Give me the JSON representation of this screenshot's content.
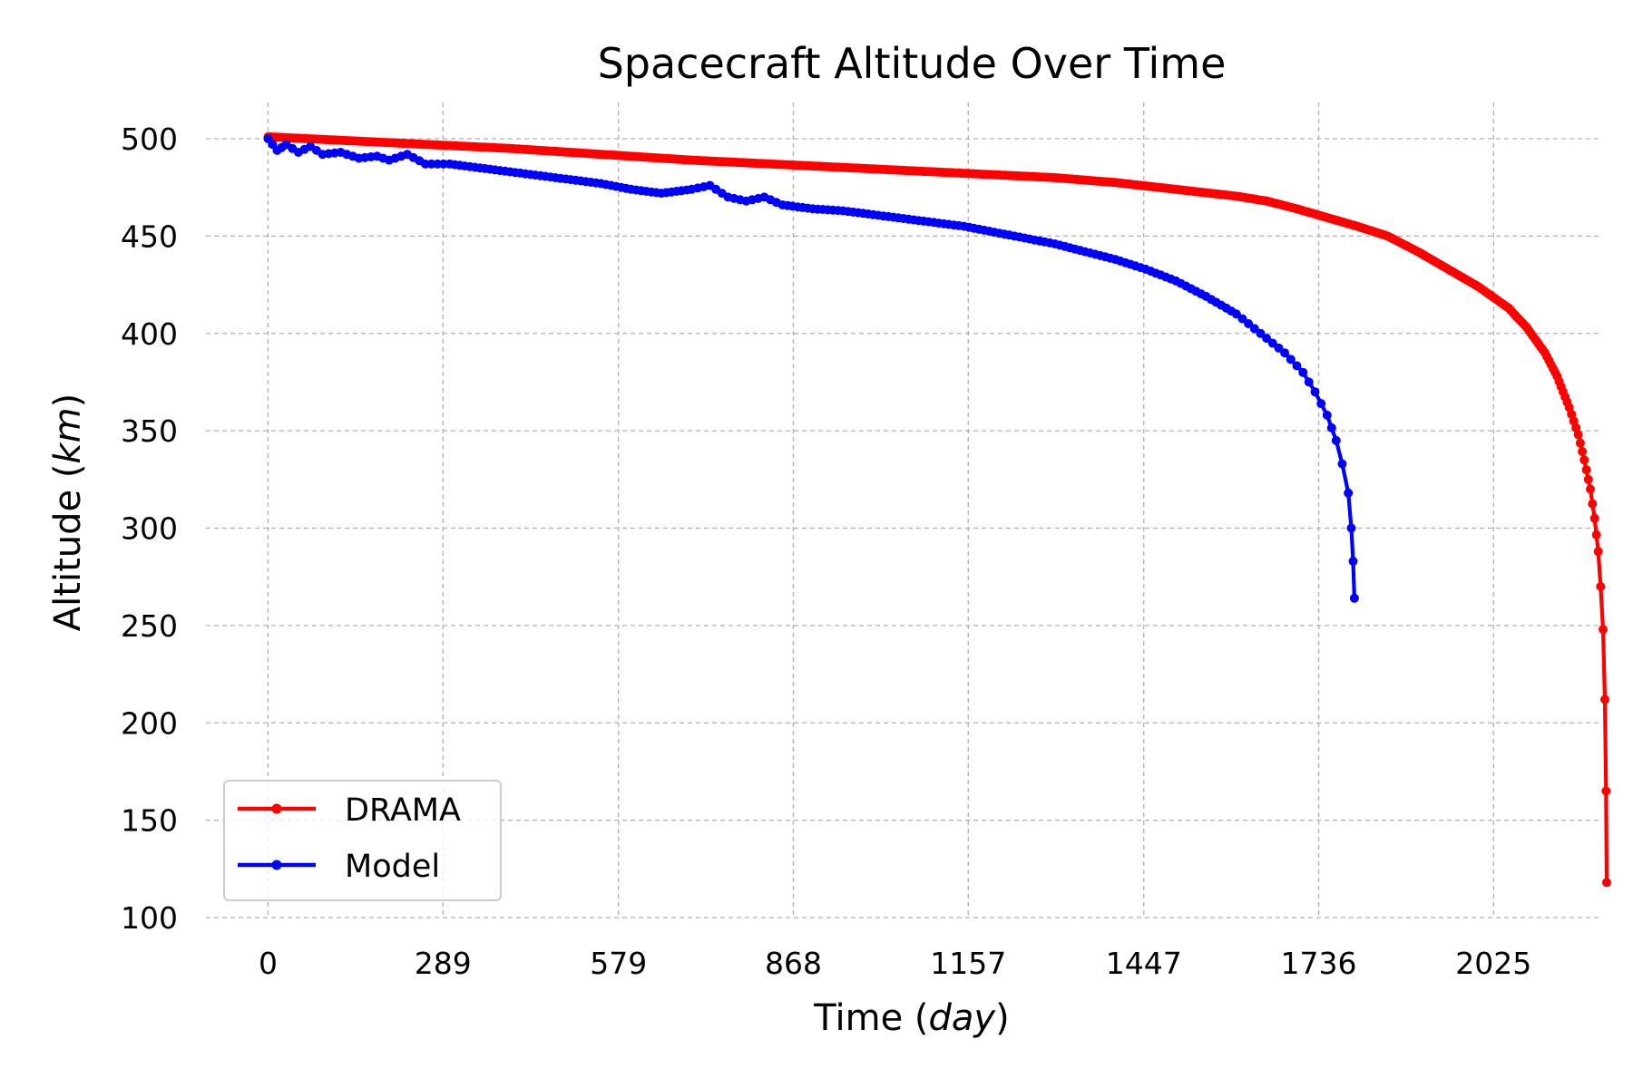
{
  "chart_data": {
    "type": "line",
    "title": "Spacecraft Altitude Over Time",
    "xlabel": "Time (day)",
    "xlabel_parts": {
      "prefix": "Time (",
      "unit": "day",
      "suffix": ")"
    },
    "ylabel": "Altitude (km)",
    "ylabel_parts": {
      "prefix": "Altitude (",
      "unit": "km",
      "suffix": ")"
    },
    "xlim": [
      -70,
      2450
    ],
    "ylim": [
      100,
      520
    ],
    "xticks": [
      0,
      289,
      579,
      868,
      1157,
      1447,
      1736,
      2025
    ],
    "yticks": [
      100,
      150,
      200,
      250,
      300,
      350,
      400,
      450,
      500
    ],
    "grid": true,
    "legend_position": "lower-left",
    "series": [
      {
        "name": "DRAMA",
        "color": "#ff0000",
        "points": [
          [
            0,
            501
          ],
          [
            100,
            499.5
          ],
          [
            200,
            498
          ],
          [
            300,
            496.5
          ],
          [
            400,
            495
          ],
          [
            500,
            493
          ],
          [
            600,
            491
          ],
          [
            700,
            489
          ],
          [
            800,
            487.5
          ],
          [
            900,
            486
          ],
          [
            1000,
            484.5
          ],
          [
            1100,
            483
          ],
          [
            1200,
            481.5
          ],
          [
            1300,
            480
          ],
          [
            1400,
            477.5
          ],
          [
            1500,
            474
          ],
          [
            1600,
            470.5
          ],
          [
            1650,
            468
          ],
          [
            1700,
            464
          ],
          [
            1750,
            459.5
          ],
          [
            1800,
            455
          ],
          [
            1850,
            450
          ],
          [
            1900,
            442
          ],
          [
            1950,
            433
          ],
          [
            2000,
            424
          ],
          [
            2050,
            413
          ],
          [
            2080,
            403
          ],
          [
            2110,
            390
          ],
          [
            2130,
            378
          ],
          [
            2150,
            362
          ],
          [
            2165,
            348
          ],
          [
            2175,
            335
          ],
          [
            2185,
            320
          ],
          [
            2192,
            305
          ],
          [
            2198,
            288
          ],
          [
            2202,
            270
          ],
          [
            2206,
            248
          ],
          [
            2209,
            212
          ],
          [
            2211,
            165
          ],
          [
            2212,
            118
          ]
        ]
      },
      {
        "name": "Model",
        "color": "#0000ff",
        "points": [
          [
            0,
            500
          ],
          [
            15,
            494
          ],
          [
            30,
            497
          ],
          [
            50,
            493
          ],
          [
            70,
            496
          ],
          [
            90,
            492
          ],
          [
            120,
            493
          ],
          [
            150,
            490
          ],
          [
            180,
            491
          ],
          [
            200,
            489
          ],
          [
            230,
            492
          ],
          [
            260,
            487
          ],
          [
            300,
            487
          ],
          [
            350,
            485
          ],
          [
            400,
            483
          ],
          [
            450,
            481
          ],
          [
            500,
            479
          ],
          [
            550,
            477
          ],
          [
            600,
            474
          ],
          [
            650,
            472
          ],
          [
            700,
            474
          ],
          [
            730,
            476
          ],
          [
            760,
            470
          ],
          [
            790,
            468
          ],
          [
            820,
            470
          ],
          [
            850,
            466
          ],
          [
            900,
            464
          ],
          [
            950,
            463
          ],
          [
            1000,
            461
          ],
          [
            1050,
            459
          ],
          [
            1100,
            457
          ],
          [
            1150,
            455
          ],
          [
            1200,
            452
          ],
          [
            1250,
            449
          ],
          [
            1300,
            446
          ],
          [
            1350,
            442
          ],
          [
            1400,
            438
          ],
          [
            1450,
            433
          ],
          [
            1500,
            427
          ],
          [
            1550,
            419
          ],
          [
            1600,
            410
          ],
          [
            1640,
            400
          ],
          [
            1680,
            390
          ],
          [
            1710,
            380
          ],
          [
            1730,
            370
          ],
          [
            1750,
            358
          ],
          [
            1765,
            345
          ],
          [
            1775,
            333
          ],
          [
            1785,
            318
          ],
          [
            1790,
            300
          ],
          [
            1793,
            283
          ],
          [
            1795,
            264
          ]
        ]
      }
    ]
  }
}
